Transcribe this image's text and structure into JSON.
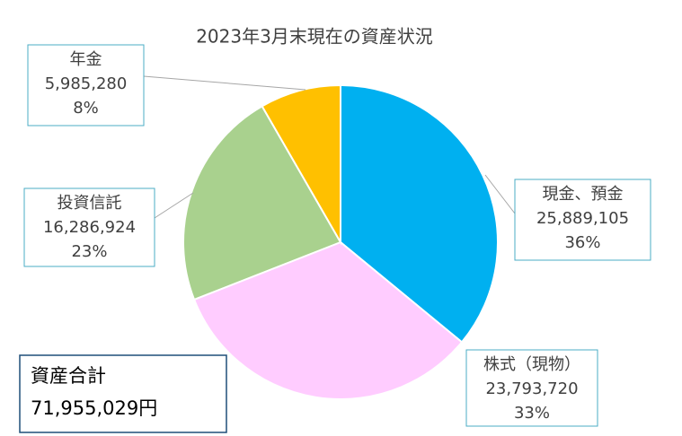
{
  "chart_data": {
    "type": "pie",
    "title": "2023年3月末現在の資産状況",
    "categories": [
      "現金、預金",
      "株式（現物）",
      "投資信託",
      "年金"
    ],
    "values": [
      25889105,
      23793720,
      16286924,
      5985280
    ],
    "value_labels": [
      "25,889,105",
      "23,793,720",
      "16,286,924",
      "5,985,280"
    ],
    "percent_labels": [
      "36%",
      "33%",
      "23%",
      "8%"
    ],
    "colors": [
      "#00b0f0",
      "#ffccff",
      "#a9d18e",
      "#ffc000"
    ],
    "total_label": "資産合計",
    "total_value_label": "71,955,029円"
  }
}
